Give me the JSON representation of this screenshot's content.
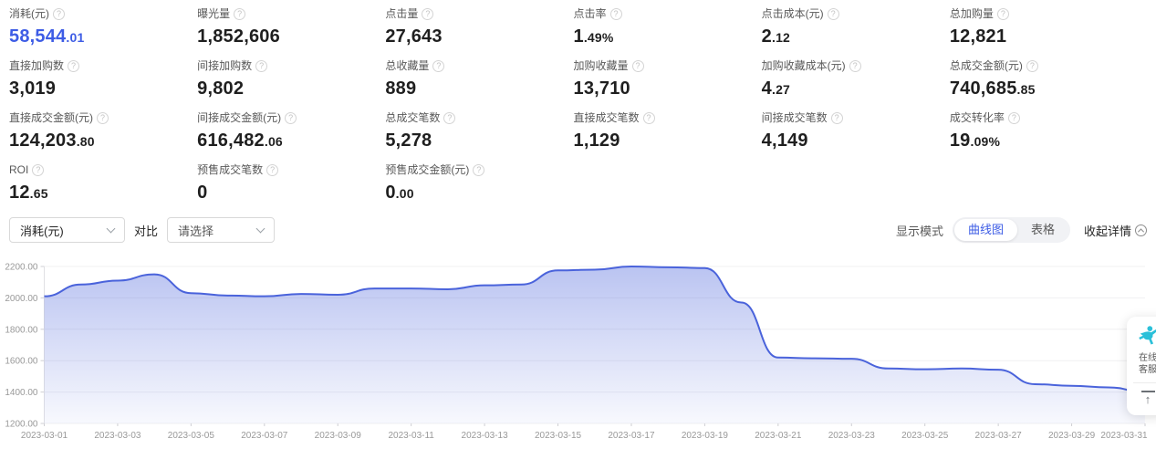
{
  "colors": {
    "accent": "#3D5CE5",
    "line": "#4A63DB",
    "toggle_bg": "#f1f2f5"
  },
  "metrics": {
    "help_glyph": "?",
    "items": [
      {
        "label": "消耗(元)",
        "int": "58,544",
        "dec": ".01",
        "accent": true
      },
      {
        "label": "曝光量",
        "int": "1,852,606",
        "dec": "",
        "accent": false
      },
      {
        "label": "点击量",
        "int": "27,643",
        "dec": "",
        "accent": false
      },
      {
        "label": "点击率",
        "int": "1",
        "dec": ".49%",
        "accent": false
      },
      {
        "label": "点击成本(元)",
        "int": "2",
        "dec": ".12",
        "accent": false
      },
      {
        "label": "总加购量",
        "int": "12,821",
        "dec": "",
        "accent": false
      },
      {
        "label": "直接加购数",
        "int": "3,019",
        "dec": "",
        "accent": false
      },
      {
        "label": "间接加购数",
        "int": "9,802",
        "dec": "",
        "accent": false
      },
      {
        "label": "总收藏量",
        "int": "889",
        "dec": "",
        "accent": false
      },
      {
        "label": "加购收藏量",
        "int": "13,710",
        "dec": "",
        "accent": false
      },
      {
        "label": "加购收藏成本(元)",
        "int": "4",
        "dec": ".27",
        "accent": false
      },
      {
        "label": "总成交金额(元)",
        "int": "740,685",
        "dec": ".85",
        "accent": false
      },
      {
        "label": "直接成交金额(元)",
        "int": "124,203",
        "dec": ".80",
        "accent": false
      },
      {
        "label": "间接成交金额(元)",
        "int": "616,482",
        "dec": ".06",
        "accent": false
      },
      {
        "label": "总成交笔数",
        "int": "5,278",
        "dec": "",
        "accent": false
      },
      {
        "label": "直接成交笔数",
        "int": "1,129",
        "dec": "",
        "accent": false
      },
      {
        "label": "间接成交笔数",
        "int": "4,149",
        "dec": "",
        "accent": false
      },
      {
        "label": "成交转化率",
        "int": "19",
        "dec": ".09%",
        "accent": false
      },
      {
        "label": "ROI",
        "int": "12",
        "dec": ".65",
        "accent": false
      },
      {
        "label": "预售成交笔数",
        "int": "0",
        "dec": "",
        "accent": false
      },
      {
        "label": "预售成交金额(元)",
        "int": "0",
        "dec": ".00",
        "accent": false
      }
    ]
  },
  "filters": {
    "metric_select_value": "消耗(元)",
    "compare_label": "对比",
    "compare_placeholder": "请选择"
  },
  "display": {
    "mode_label": "显示模式",
    "modes": [
      "曲线图",
      "表格"
    ],
    "active_mode": "曲线图",
    "collapse_label": "收起详情"
  },
  "service_widget": {
    "line1": "在线",
    "line2": "客服",
    "icon_color": "#2BC0D9",
    "back_top_glyph": "↑"
  },
  "chart_data": {
    "type": "area",
    "title": "",
    "series_name": "消耗(元)",
    "x": [
      "2023-03-01",
      "2023-03-02",
      "2023-03-03",
      "2023-03-04",
      "2023-03-05",
      "2023-03-06",
      "2023-03-07",
      "2023-03-08",
      "2023-03-09",
      "2023-03-10",
      "2023-03-11",
      "2023-03-12",
      "2023-03-13",
      "2023-03-14",
      "2023-03-15",
      "2023-03-16",
      "2023-03-17",
      "2023-03-18",
      "2023-03-19",
      "2023-03-20",
      "2023-03-21",
      "2023-03-22",
      "2023-03-23",
      "2023-03-24",
      "2023-03-25",
      "2023-03-26",
      "2023-03-27",
      "2023-03-28",
      "2023-03-29",
      "2023-03-30",
      "2023-03-31"
    ],
    "values": [
      2010,
      2085,
      2110,
      2150,
      2030,
      2015,
      2010,
      2025,
      2020,
      2060,
      2060,
      2055,
      2080,
      2085,
      2175,
      2180,
      2200,
      2195,
      2190,
      1970,
      1620,
      1615,
      1612,
      1550,
      1545,
      1550,
      1542,
      1450,
      1440,
      1430,
      1400
    ],
    "y_ticks": [
      2200,
      2000,
      1800,
      1600,
      1400,
      1200
    ],
    "ylim": [
      1200,
      2200
    ],
    "x_tick_every": 2,
    "grid": true,
    "legend": false,
    "line_color": "#4A63DB"
  }
}
